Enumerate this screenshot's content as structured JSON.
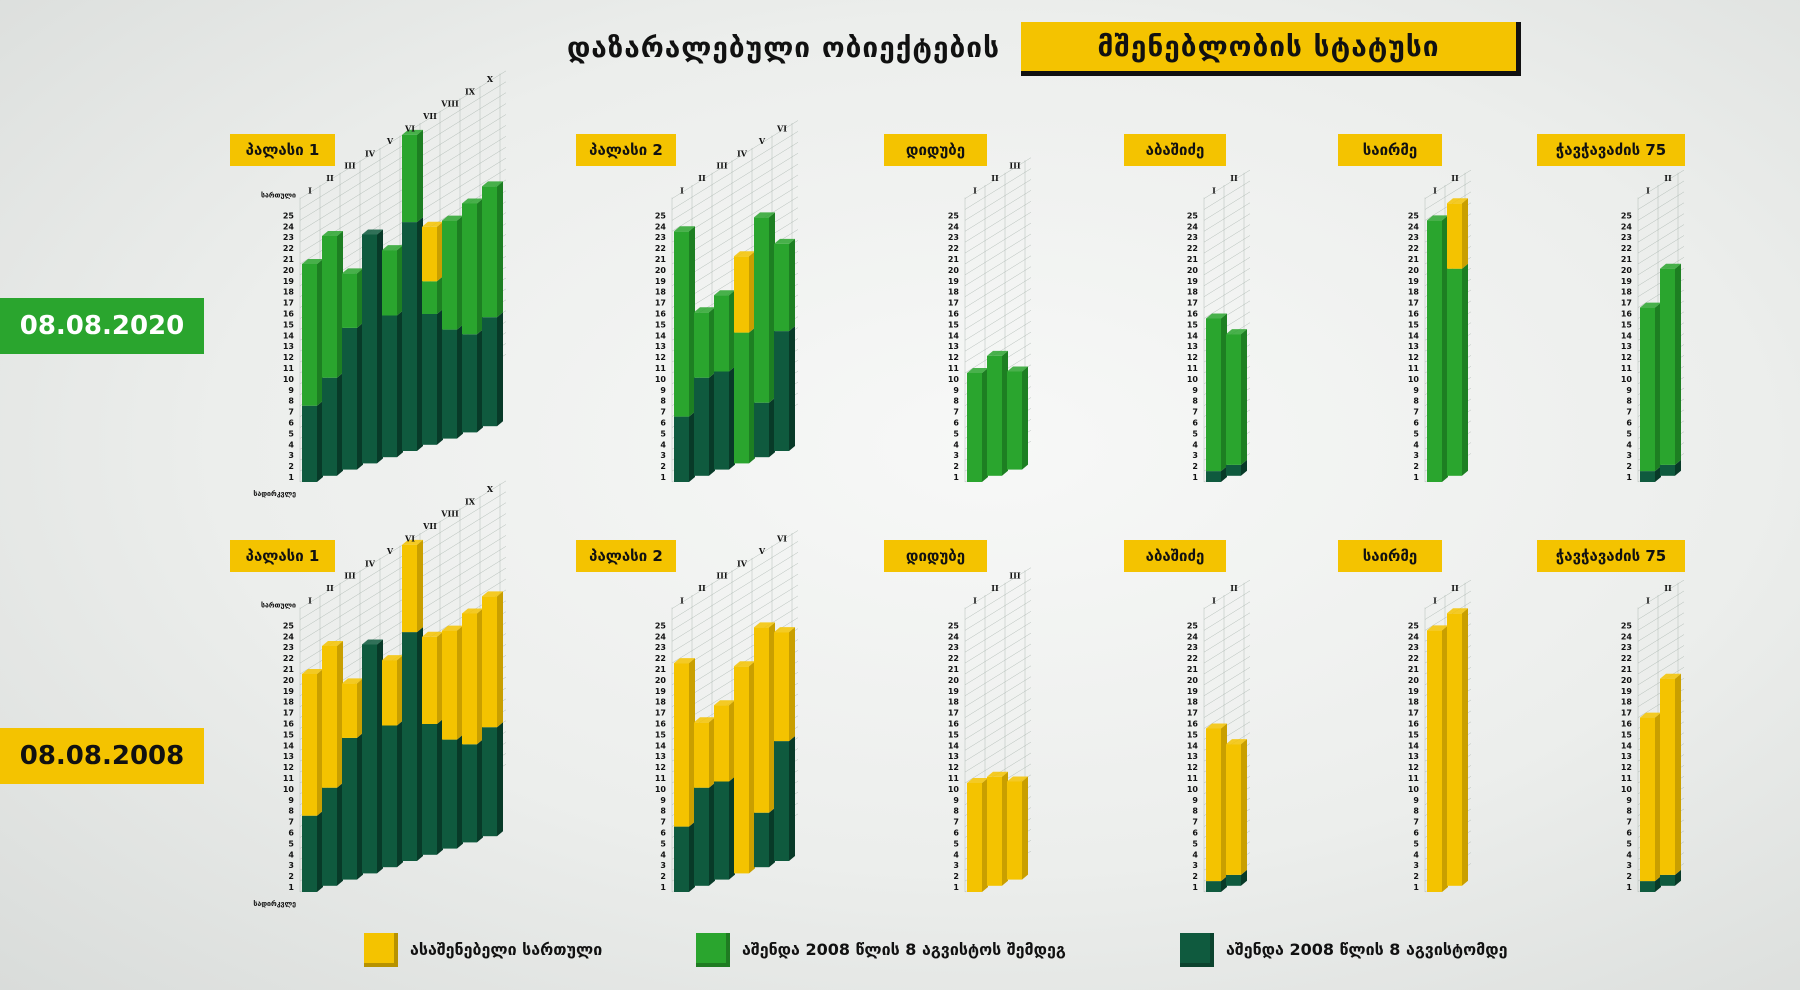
{
  "title": {
    "left": "დაზარალებული ობიექტების",
    "right": "მშენებლობის სტატუსი"
  },
  "colors": {
    "yellow": "#f4c300",
    "green": "#2aa52e",
    "dark": "#0f5a3e",
    "yellow_side": "#c99f00",
    "green_side": "#1d7f22",
    "dark_side": "#083a28",
    "grid": "#9aa8a0"
  },
  "dates": {
    "top": "08.08.2020",
    "bottom": "08.08.2008"
  },
  "legend": [
    {
      "label": "ასაშენებელი სართული",
      "color": "#f4c300"
    },
    {
      "label": "აშენდა 2008 წლის 8 აგვისტოს შემდეგ",
      "color": "#2aa52e"
    },
    {
      "label": "აშენდა 2008 წლის 8 აგვისტომდე",
      "color": "#0f5a3e"
    }
  ],
  "axis_words": {
    "top": "სართული",
    "bottom": "სადირკვლე"
  },
  "chart_data": [
    {
      "type": "bar",
      "stacked": true,
      "row": "08.08.2020",
      "title": "პალასი 1",
      "categories": [
        "I",
        "II",
        "III",
        "IV",
        "V",
        "VI",
        "VII",
        "VIII",
        "IX",
        "X"
      ],
      "ylim": [
        1,
        25
      ],
      "axis_top": "სართული",
      "axis_bottom": "სადირკვლე",
      "segments": [
        {
          "dark": 7,
          "green": 13,
          "yellow": 0
        },
        {
          "dark": 9,
          "green": 13,
          "yellow": 0
        },
        {
          "dark": 13,
          "green": 5,
          "yellow": 0
        },
        {
          "dark": 21,
          "green": 0,
          "yellow": 0
        },
        {
          "dark": 13,
          "green": 6,
          "yellow": 0
        },
        {
          "dark": 21,
          "green": 8,
          "yellow": 0
        },
        {
          "dark": 12,
          "green": 3,
          "yellow": 5
        },
        {
          "dark": 10,
          "green": 10,
          "yellow": 0
        },
        {
          "dark": 9,
          "green": 12,
          "yellow": 0
        },
        {
          "dark": 10,
          "green": 12,
          "yellow": 0
        }
      ]
    },
    {
      "type": "bar",
      "stacked": true,
      "row": "08.08.2020",
      "title": "პალასი 2",
      "categories": [
        "I",
        "II",
        "III",
        "IV",
        "V",
        "VI"
      ],
      "ylim": [
        1,
        25
      ],
      "segments": [
        {
          "dark": 6,
          "green": 17,
          "yellow": 0
        },
        {
          "dark": 9,
          "green": 6,
          "yellow": 0
        },
        {
          "dark": 9,
          "green": 7,
          "yellow": 0
        },
        {
          "dark": 0,
          "green": 12,
          "yellow": 7
        },
        {
          "dark": 5,
          "green": 17,
          "yellow": 0
        },
        {
          "dark": 11,
          "green": 8,
          "yellow": 0
        }
      ]
    },
    {
      "type": "bar",
      "stacked": true,
      "row": "08.08.2020",
      "title": "დიდუბე",
      "categories": [
        "I",
        "II",
        "III"
      ],
      "ylim": [
        1,
        25
      ],
      "segments": [
        {
          "dark": 0,
          "green": 10,
          "yellow": 0
        },
        {
          "dark": 0,
          "green": 11,
          "yellow": 0
        },
        {
          "dark": 0,
          "green": 9,
          "yellow": 0
        }
      ]
    },
    {
      "type": "bar",
      "stacked": true,
      "row": "08.08.2020",
      "title": "აბაშიძე",
      "categories": [
        "I",
        "II"
      ],
      "ylim": [
        1,
        25
      ],
      "segments": [
        {
          "dark": 1,
          "green": 14,
          "yellow": 0
        },
        {
          "dark": 1,
          "green": 12,
          "yellow": 0
        }
      ]
    },
    {
      "type": "bar",
      "stacked": true,
      "row": "08.08.2020",
      "title": "საირმე",
      "categories": [
        "I",
        "II"
      ],
      "ylim": [
        1,
        25
      ],
      "segments": [
        {
          "dark": 0,
          "green": 24,
          "yellow": 0
        },
        {
          "dark": 0,
          "green": 19,
          "yellow": 6
        }
      ]
    },
    {
      "type": "bar",
      "stacked": true,
      "row": "08.08.2020",
      "title": "ჭავჭავაძის 75",
      "categories": [
        "I",
        "II"
      ],
      "ylim": [
        1,
        25
      ],
      "segments": [
        {
          "dark": 1,
          "green": 15,
          "yellow": 0
        },
        {
          "dark": 1,
          "green": 18,
          "yellow": 0
        }
      ]
    },
    {
      "type": "bar",
      "stacked": true,
      "row": "08.08.2008",
      "title": "პალასი 1",
      "categories": [
        "I",
        "II",
        "III",
        "IV",
        "V",
        "VI",
        "VII",
        "VIII",
        "IX",
        "X"
      ],
      "ylim": [
        1,
        25
      ],
      "axis_top": "სართული",
      "axis_bottom": "სადირკვლე",
      "segments": [
        {
          "dark": 7,
          "green": 0,
          "yellow": 13
        },
        {
          "dark": 9,
          "green": 0,
          "yellow": 13
        },
        {
          "dark": 13,
          "green": 0,
          "yellow": 5
        },
        {
          "dark": 21,
          "green": 0,
          "yellow": 0
        },
        {
          "dark": 13,
          "green": 0,
          "yellow": 6
        },
        {
          "dark": 21,
          "green": 0,
          "yellow": 8
        },
        {
          "dark": 12,
          "green": 0,
          "yellow": 8
        },
        {
          "dark": 10,
          "green": 0,
          "yellow": 10
        },
        {
          "dark": 9,
          "green": 0,
          "yellow": 12
        },
        {
          "dark": 10,
          "green": 0,
          "yellow": 12
        }
      ]
    },
    {
      "type": "bar",
      "stacked": true,
      "row": "08.08.2008",
      "title": "პალასი 2",
      "categories": [
        "I",
        "II",
        "III",
        "IV",
        "V",
        "VI"
      ],
      "ylim": [
        1,
        25
      ],
      "segments": [
        {
          "dark": 6,
          "green": 0,
          "yellow": 15
        },
        {
          "dark": 9,
          "green": 0,
          "yellow": 6
        },
        {
          "dark": 9,
          "green": 0,
          "yellow": 7
        },
        {
          "dark": 0,
          "green": 0,
          "yellow": 19
        },
        {
          "dark": 5,
          "green": 0,
          "yellow": 17
        },
        {
          "dark": 11,
          "green": 0,
          "yellow": 10
        }
      ]
    },
    {
      "type": "bar",
      "stacked": true,
      "row": "08.08.2008",
      "title": "დიდუბე",
      "categories": [
        "I",
        "II",
        "III"
      ],
      "ylim": [
        1,
        25
      ],
      "segments": [
        {
          "dark": 0,
          "green": 0,
          "yellow": 10
        },
        {
          "dark": 0,
          "green": 0,
          "yellow": 10
        },
        {
          "dark": 0,
          "green": 0,
          "yellow": 9
        }
      ]
    },
    {
      "type": "bar",
      "stacked": true,
      "row": "08.08.2008",
      "title": "აბაშიძე",
      "categories": [
        "I",
        "II"
      ],
      "ylim": [
        1,
        25
      ],
      "segments": [
        {
          "dark": 1,
          "green": 0,
          "yellow": 14
        },
        {
          "dark": 1,
          "green": 0,
          "yellow": 12
        }
      ]
    },
    {
      "type": "bar",
      "stacked": true,
      "row": "08.08.2008",
      "title": "საირმე",
      "categories": [
        "I",
        "II"
      ],
      "ylim": [
        1,
        25
      ],
      "segments": [
        {
          "dark": 0,
          "green": 0,
          "yellow": 24
        },
        {
          "dark": 0,
          "green": 0,
          "yellow": 25
        }
      ]
    },
    {
      "type": "bar",
      "stacked": true,
      "row": "08.08.2008",
      "title": "ჭავჭავაძის 75",
      "categories": [
        "I",
        "II"
      ],
      "ylim": [
        1,
        25
      ],
      "segments": [
        {
          "dark": 1,
          "green": 0,
          "yellow": 15
        },
        {
          "dark": 1,
          "green": 0,
          "yellow": 18
        }
      ]
    }
  ]
}
